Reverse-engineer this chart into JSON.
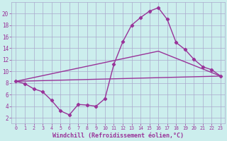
{
  "bg_color": "#cceeed",
  "grid_color": "#aaaacc",
  "line_color": "#993399",
  "marker": "D",
  "markersize": 2.2,
  "linewidth": 1.0,
  "xlabel": "Windchill (Refroidissement éolien,°C)",
  "xlabel_fontsize": 6.0,
  "ylabel_ticks": [
    2,
    4,
    6,
    8,
    10,
    12,
    14,
    16,
    18,
    20
  ],
  "xlim": [
    -0.5,
    23.5
  ],
  "ylim": [
    1.0,
    22.0
  ],
  "series1_x": [
    0,
    1,
    2,
    3,
    4,
    5,
    6,
    7,
    8,
    9,
    10,
    11,
    12,
    13,
    14,
    15,
    16,
    17,
    18,
    19,
    20,
    21,
    22,
    23
  ],
  "series1_y": [
    8.3,
    7.9,
    7.0,
    6.5,
    5.0,
    3.2,
    2.5,
    4.3,
    4.2,
    4.0,
    5.3,
    11.2,
    15.1,
    18.0,
    19.3,
    20.4,
    21.0,
    19.0,
    15.0,
    13.8,
    12.1,
    10.8,
    10.3,
    9.2
  ],
  "series2_x": [
    0,
    23
  ],
  "series2_y": [
    8.3,
    9.2
  ],
  "series3_x": [
    0,
    16,
    23
  ],
  "series3_y": [
    8.3,
    13.5,
    9.2
  ],
  "xtick_fontsize": 4.8,
  "ytick_fontsize": 5.5
}
